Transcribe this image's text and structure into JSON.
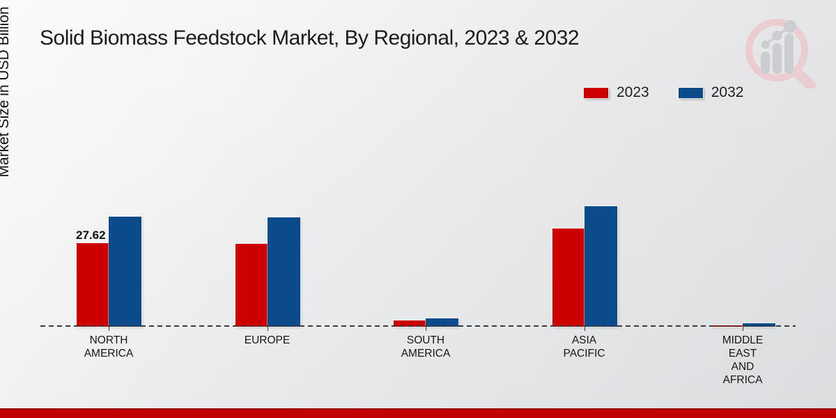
{
  "title": "Solid Biomass Feedstock Market, By Regional, 2023 & 2032",
  "y_axis_label": "Market Size in USD Billion",
  "legend": [
    {
      "label": "2023",
      "swatch_color": "#cc0000"
    },
    {
      "label": "2032",
      "swatch_color": "#0b4a8b"
    }
  ],
  "footer": {
    "band_color": "#c00000"
  },
  "logo": {
    "name": "magnifier-bar-chart-logo",
    "ring_color": "#ecc9cd",
    "bars_color": "#c7c9cd"
  },
  "chart_data": {
    "type": "bar",
    "title": "Solid Biomass Feedstock Market, By Regional, 2023 & 2032",
    "xlabel": "",
    "ylabel": "Market Size in USD Billion",
    "ylim": [
      0,
      46
    ],
    "grid": false,
    "legend_position": "top-right",
    "baseline_style": "dashed",
    "categories": [
      "NORTH AMERICA",
      "EUROPE",
      "SOUTH AMERICA",
      "ASIA PACIFIC",
      "MIDDLE EAST AND AFRICA"
    ],
    "categories_lines": [
      [
        "NORTH",
        "AMERICA"
      ],
      [
        "EUROPE"
      ],
      [
        "SOUTH",
        "AMERICA"
      ],
      [
        "ASIA",
        "PACIFIC"
      ],
      [
        "MIDDLE",
        "EAST",
        "AND",
        "AFRICA"
      ]
    ],
    "series": [
      {
        "name": "2023",
        "color": "#cc0000",
        "values": [
          27.62,
          27.4,
          2.1,
          32.4,
          0.55
        ]
      },
      {
        "name": "2032",
        "color": "#0b4a8b",
        "values": [
          36.4,
          36.2,
          2.8,
          39.8,
          1.05
        ]
      }
    ],
    "data_labels": [
      {
        "series": 0,
        "index": 0,
        "text": "27.62"
      }
    ]
  }
}
